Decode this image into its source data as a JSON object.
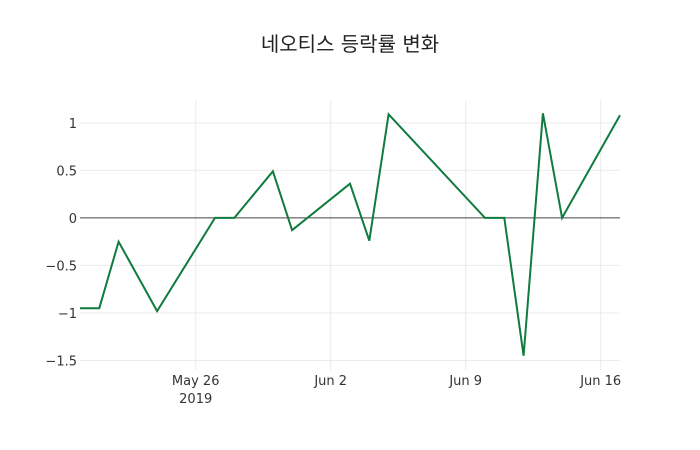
{
  "chart_data": {
    "type": "line",
    "title": "네오티스 등락률 변화",
    "xlabel": "",
    "ylabel": "",
    "x": [
      "2019-05-20",
      "2019-05-21",
      "2019-05-22",
      "2019-05-24",
      "2019-05-27",
      "2019-05-28",
      "2019-05-30",
      "2019-05-31",
      "2019-06-03",
      "2019-06-04",
      "2019-06-05",
      "2019-06-10",
      "2019-06-11",
      "2019-06-12",
      "2019-06-13",
      "2019-06-14",
      "2019-06-17"
    ],
    "series": [
      {
        "name": "등락률",
        "color": "#0f7b3f",
        "values": [
          -0.95,
          -0.95,
          -0.25,
          -0.98,
          0.0,
          0.0,
          0.49,
          -0.13,
          0.36,
          -0.24,
          1.09,
          0.0,
          0.0,
          -1.45,
          1.1,
          0.0,
          1.08
        ]
      }
    ],
    "ylim": [
      -1.6,
      1.24
    ],
    "xlim": [
      "2019-05-20",
      "2019-06-17"
    ],
    "yticks": [
      1,
      0.5,
      0,
      -0.5,
      -1,
      -1.5
    ],
    "ytick_labels": [
      "1",
      "0.5",
      "0",
      "−0.5",
      "−1",
      "−1.5"
    ],
    "xticks": [
      "2019-05-26",
      "2019-06-02",
      "2019-06-09",
      "2019-06-16"
    ],
    "xtick_labels": [
      "May 26",
      "Jun 2",
      "Jun 9",
      "Jun 16"
    ],
    "xtick_sublabel": "2019",
    "grid": true,
    "zero_line": true,
    "legend": false
  }
}
